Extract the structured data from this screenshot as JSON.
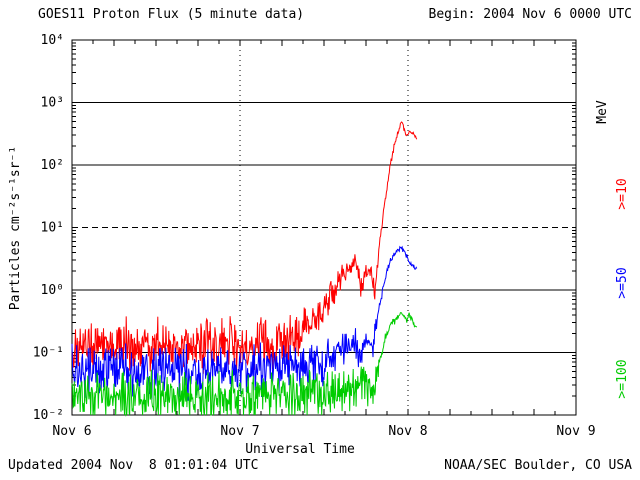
{
  "header": {
    "title": "GOES11 Proton Flux (5 minute data)",
    "begin": "Begin: 2004 Nov 6 0000 UTC"
  },
  "footer": {
    "updated": "Updated 2004 Nov  8 01:01:04 UTC",
    "credit": "NOAA/SEC Boulder, CO USA"
  },
  "right_labels": {
    "unit": "MeV",
    "series": [
      {
        "label": ">=10",
        "color": "#ff0000"
      },
      {
        "label": ">=50",
        "color": "#0000ff"
      },
      {
        "label": ">=100",
        "color": "#00cc00"
      }
    ]
  },
  "chart_data": {
    "type": "line",
    "title": "GOES11 Proton Flux (5 minute data)",
    "xlabel": "Universal Time",
    "ylabel": "Particles cm⁻²s⁻¹sr⁻¹",
    "x_tick_labels": [
      "Nov 6",
      "Nov 7",
      "Nov 8",
      "Nov 9"
    ],
    "x_tick_hours": [
      0,
      24,
      48,
      72
    ],
    "x_range_hours": [
      0,
      72
    ],
    "y_log10_range": [
      -2,
      4
    ],
    "y_decade_exponents": [
      4,
      3,
      2,
      1,
      0,
      -1,
      -2
    ],
    "y_tick_labels": [
      "10⁴",
      "10³",
      "10²",
      "10¹",
      "10⁰",
      "10⁻¹",
      "10⁻²"
    ],
    "dashed_threshold_flux": 10,
    "day_boundary_hours": [
      24,
      48
    ],
    "cadence_minutes": 5,
    "grid": "decade horizontal lines solid, 10^1 threshold dashed, day boundaries dotted vertical",
    "legend_position": "right-rotated",
    "series": [
      {
        "name": ">=10 MeV",
        "color": "#ff0000",
        "end_hour": 49.3,
        "keypoints": {
          "t_hours": [
            0,
            12,
            24,
            30,
            33,
            35,
            36.5,
            38,
            39.5,
            40.5,
            41.3,
            42.0,
            42.7,
            43.3,
            44.2,
            45.2,
            46.0,
            46.7,
            47.1,
            47.5,
            47.9,
            48.3,
            48.7,
            49.3
          ],
          "log10_flux": [
            -0.9,
            -0.9,
            -0.9,
            -0.85,
            -0.65,
            -0.45,
            -0.2,
            0.1,
            0.35,
            0.45,
            0.05,
            0.3,
            0.35,
            -0.05,
            1.0,
            1.8,
            2.3,
            2.55,
            2.7,
            2.55,
            2.45,
            2.55,
            2.5,
            2.4
          ],
          "noise_dex": [
            0.5,
            0.5,
            0.5,
            0.45,
            0.4,
            0.35,
            0.3,
            0.25,
            0.2,
            0.15,
            0.2,
            0.15,
            0.15,
            0.2,
            0.1,
            0.08,
            0.06,
            0.05,
            0.04,
            0.05,
            0.05,
            0.05,
            0.05,
            0.05
          ]
        }
      },
      {
        "name": ">=50 MeV",
        "color": "#0000ff",
        "end_hour": 49.3,
        "keypoints": {
          "t_hours": [
            0,
            12,
            24,
            33,
            36,
            38,
            40,
            41.3,
            42.0,
            43.0,
            43.8,
            44.5,
            45.3,
            46.2,
            47.0,
            47.5,
            48.0,
            48.5,
            49.3
          ],
          "log10_flux": [
            -1.3,
            -1.3,
            -1.3,
            -1.25,
            -1.15,
            -1.0,
            -0.85,
            -1.0,
            -0.8,
            -0.9,
            -0.3,
            0.1,
            0.4,
            0.6,
            0.68,
            0.6,
            0.5,
            0.42,
            0.35
          ],
          "noise_dex": [
            0.5,
            0.5,
            0.5,
            0.45,
            0.4,
            0.35,
            0.3,
            0.3,
            0.25,
            0.25,
            0.15,
            0.1,
            0.08,
            0.06,
            0.05,
            0.05,
            0.06,
            0.06,
            0.06
          ]
        }
      },
      {
        "name": ">=100 MeV",
        "color": "#00cc00",
        "end_hour": 49.3,
        "keypoints": {
          "t_hours": [
            0,
            12,
            24,
            36,
            40,
            42,
            43.2,
            44.0,
            44.8,
            45.6,
            46.4,
            47.0,
            47.4,
            47.8,
            48.2,
            48.6,
            49.3
          ],
          "log10_flux": [
            -1.7,
            -1.7,
            -1.7,
            -1.65,
            -1.6,
            -1.55,
            -1.6,
            -1.1,
            -0.75,
            -0.55,
            -0.45,
            -0.35,
            -0.42,
            -0.5,
            -0.38,
            -0.5,
            -0.6
          ],
          "noise_dex": [
            0.5,
            0.5,
            0.5,
            0.45,
            0.4,
            0.4,
            0.35,
            0.15,
            0.1,
            0.08,
            0.07,
            0.06,
            0.06,
            0.06,
            0.06,
            0.06,
            0.06
          ]
        }
      }
    ]
  }
}
